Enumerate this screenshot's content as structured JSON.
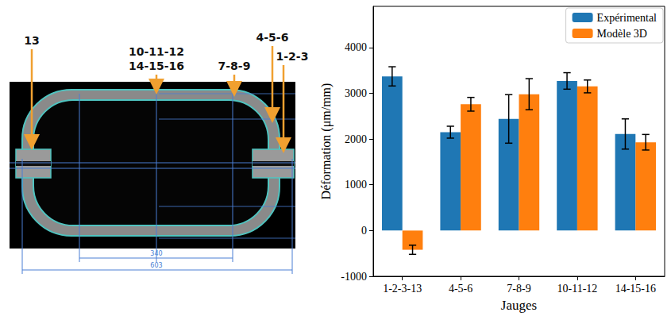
{
  "diagram": {
    "gauges": [
      "13",
      "10-11-12",
      "14-15-16",
      "7-8-9",
      "4-5-6",
      "1-2-3"
    ],
    "dimensions": [
      340,
      603
    ]
  },
  "chart_data": {
    "type": "bar",
    "categories": [
      "1-2-3-13",
      "4-5-6",
      "7-8-9",
      "10-11-12",
      "14-15-16"
    ],
    "series": [
      {
        "name": "Expérimental",
        "color": "#1f77b4",
        "values": [
          3370,
          2150,
          2440,
          3270,
          2110
        ],
        "errors": [
          210,
          130,
          530,
          180,
          330
        ]
      },
      {
        "name": "Modèle 3D",
        "color": "#ff7f0e",
        "values": [
          -420,
          2760,
          2980,
          3150,
          1930
        ],
        "errors": [
          100,
          150,
          340,
          140,
          170
        ]
      }
    ],
    "xlabel": "Jauges",
    "ylabel": "Déformation (μm/mm)",
    "ylim": [
      -1000,
      4900
    ],
    "yticks": [
      -1000,
      0,
      1000,
      2000,
      3000,
      4000
    ],
    "grid": false,
    "legend": "upper right"
  }
}
